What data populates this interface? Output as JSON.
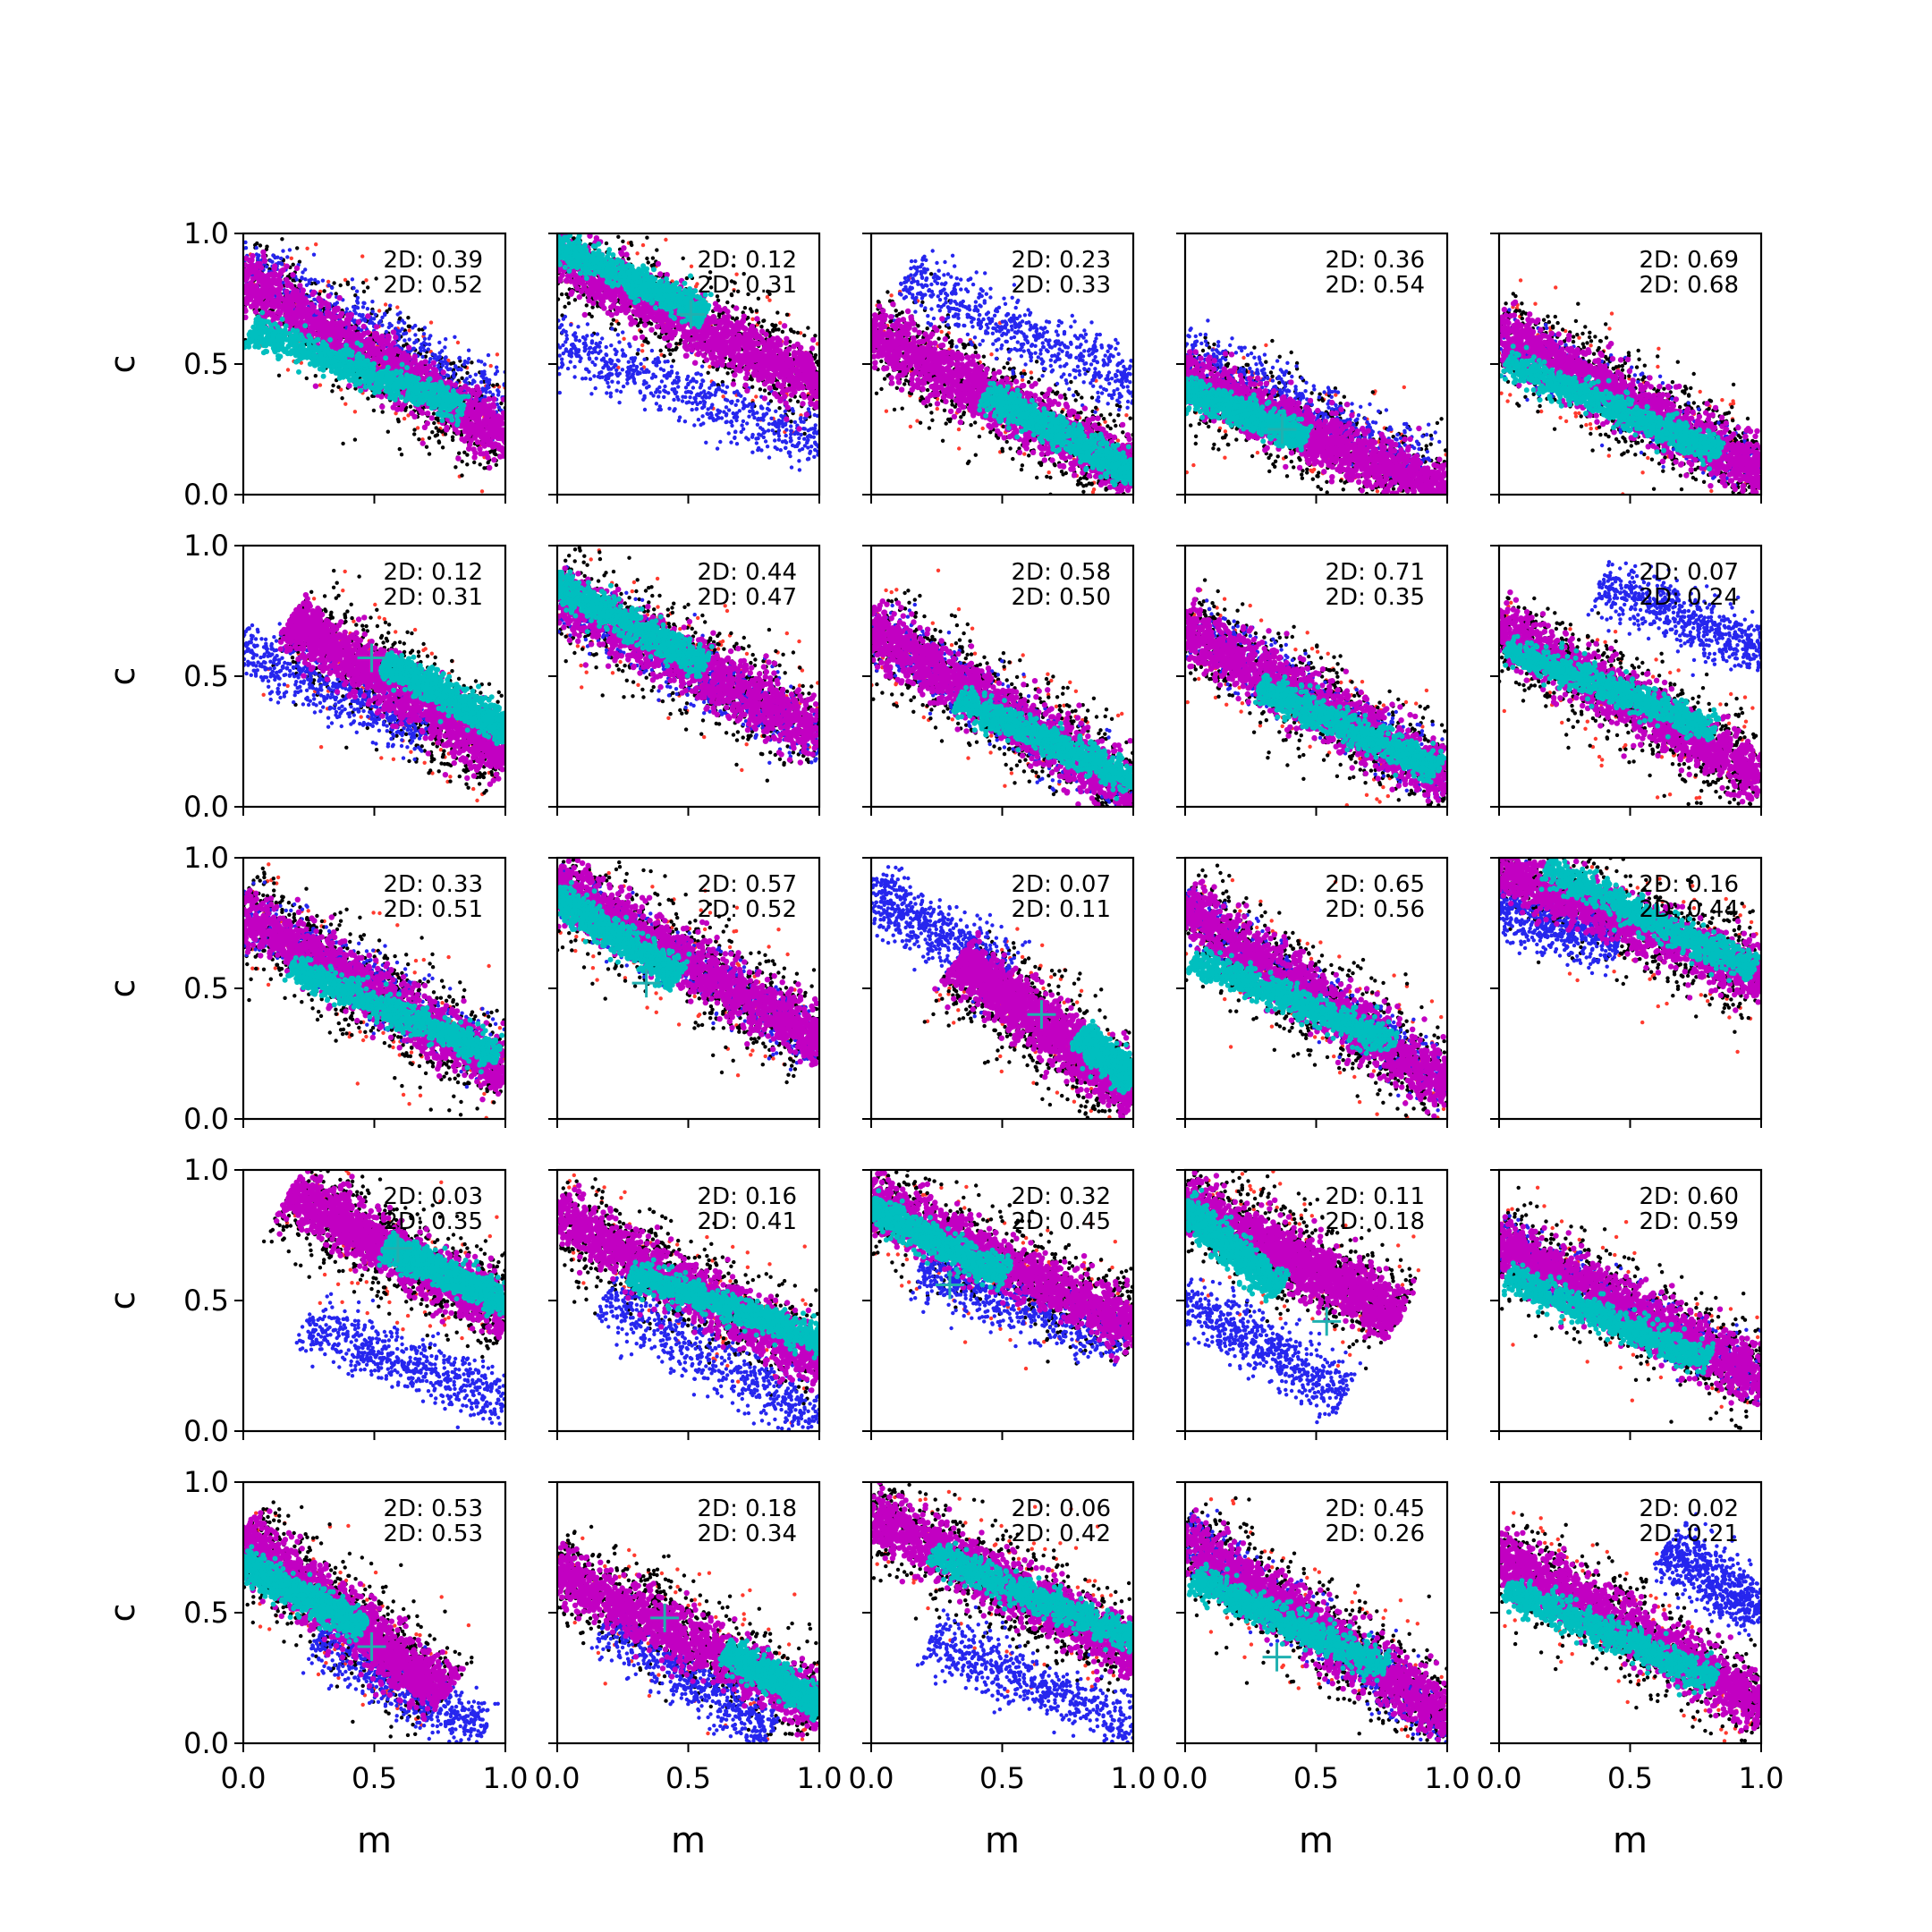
{
  "chart_data": {
    "type": "scatter",
    "grid_rows": 5,
    "grid_cols": 5,
    "xlabel": "m",
    "ylabel": "c",
    "xlim": [
      0,
      1
    ],
    "ylim": [
      0,
      1
    ],
    "xticks": [
      "0.0",
      "0.5",
      "1.0"
    ],
    "yticks": [
      "0.0",
      "0.5",
      "1.0"
    ],
    "grid": false,
    "colors": {
      "red": "#ff3b2f",
      "black": "#000000",
      "blue": "#2626ee",
      "magenta": "#c200c2",
      "cyan": "#00bfbf",
      "cross": "#20b0b0",
      "text": "#000000"
    },
    "panels": [
      {
        "label1": "2D: 0.39",
        "label2": "2D: 0.52",
        "blue": [
          0.0,
          0.88,
          1.0,
          0.35
        ],
        "pink": [
          0.0,
          0.82,
          1.0,
          0.22
        ],
        "cyan": [
          0.05,
          0.62,
          0.82,
          0.34
        ],
        "cross": null
      },
      {
        "label1": "2D: 0.12",
        "label2": "2D: 0.31",
        "blue": [
          0.0,
          0.58,
          1.0,
          0.2
        ],
        "pink": [
          0.0,
          0.92,
          1.0,
          0.42
        ],
        "cyan": [
          0.0,
          0.95,
          0.55,
          0.7
        ],
        "cross": [
          0.51,
          0.69
        ]
      },
      {
        "label1": "2D: 0.23",
        "label2": "2D: 0.33",
        "blue": [
          0.15,
          0.82,
          1.0,
          0.42
        ],
        "pink": [
          0.0,
          0.62,
          1.0,
          0.08
        ],
        "cyan": [
          0.45,
          0.38,
          1.0,
          0.08
        ],
        "cross": null
      },
      {
        "label1": "2D: 0.36",
        "label2": "2D: 0.54",
        "blue": [
          0.0,
          0.55,
          0.9,
          0.12
        ],
        "pink": [
          0.0,
          0.45,
          1.0,
          0.0
        ],
        "cyan": [
          0.0,
          0.4,
          0.45,
          0.22
        ],
        "cross": [
          0.37,
          0.25
        ]
      },
      {
        "label1": "2D: 0.69",
        "label2": "2D: 0.68",
        "blue": [
          0.0,
          0.6,
          1.0,
          0.1
        ],
        "pink": [
          0.0,
          0.62,
          1.0,
          0.08
        ],
        "cyan": [
          0.05,
          0.5,
          0.82,
          0.17
        ],
        "cross": null
      },
      {
        "label1": "2D: 0.12",
        "label2": "2D: 0.31",
        "blue": [
          0.0,
          0.6,
          0.7,
          0.3
        ],
        "pink": [
          0.2,
          0.7,
          1.0,
          0.2
        ],
        "cyan": [
          0.55,
          0.55,
          1.0,
          0.3
        ],
        "cross": [
          0.49,
          0.57
        ]
      },
      {
        "label1": "2D: 0.44",
        "label2": "2D: 0.47",
        "blue": [
          0.0,
          0.8,
          1.0,
          0.25
        ],
        "pink": [
          0.0,
          0.82,
          1.0,
          0.28
        ],
        "cyan": [
          0.0,
          0.85,
          0.55,
          0.55
        ],
        "cross": null
      },
      {
        "label1": "2D: 0.58",
        "label2": "2D: 0.50",
        "blue": [
          0.0,
          0.68,
          1.0,
          0.05
        ],
        "pink": [
          0.0,
          0.68,
          1.0,
          0.05
        ],
        "cyan": [
          0.35,
          0.4,
          1.0,
          0.1
        ],
        "cross": null
      },
      {
        "label1": "2D: 0.71",
        "label2": "2D: 0.35",
        "blue": [
          0.0,
          0.7,
          1.0,
          0.1
        ],
        "pink": [
          0.0,
          0.68,
          1.0,
          0.1
        ],
        "cyan": [
          0.3,
          0.45,
          0.95,
          0.15
        ],
        "cross": null
      },
      {
        "label1": "2D: 0.07",
        "label2": "2D: 0.24",
        "blue": [
          0.4,
          0.85,
          1.0,
          0.6
        ],
        "pink": [
          0.0,
          0.68,
          1.0,
          0.12
        ],
        "cyan": [
          0.05,
          0.6,
          0.8,
          0.3
        ],
        "cross": null
      },
      {
        "label1": "2D: 0.33",
        "label2": "2D: 0.51",
        "blue": [
          0.0,
          0.8,
          1.0,
          0.2
        ],
        "pink": [
          0.0,
          0.78,
          1.0,
          0.18
        ],
        "cyan": [
          0.2,
          0.57,
          0.95,
          0.25
        ],
        "cross": null
      },
      {
        "label1": "2D: 0.57",
        "label2": "2D: 0.52",
        "blue": [
          0.0,
          0.88,
          1.0,
          0.3
        ],
        "pink": [
          0.0,
          0.9,
          1.0,
          0.3
        ],
        "cyan": [
          0.0,
          0.85,
          0.45,
          0.55
        ],
        "cross": [
          0.34,
          0.52
        ]
      },
      {
        "label1": "2D: 0.07",
        "label2": "2D: 0.11",
        "blue": [
          0.0,
          0.88,
          0.5,
          0.55
        ],
        "pink": [
          0.35,
          0.6,
          1.0,
          0.1
        ],
        "cyan": [
          0.8,
          0.32,
          1.0,
          0.15
        ],
        "cross": [
          0.65,
          0.4
        ]
      },
      {
        "label1": "2D: 0.65",
        "label2": "2D: 0.56",
        "blue": [
          0.0,
          0.8,
          1.0,
          0.15
        ],
        "pink": [
          0.0,
          0.8,
          1.0,
          0.12
        ],
        "cyan": [
          0.05,
          0.6,
          0.78,
          0.3
        ],
        "cross": null
      },
      {
        "label1": "2D: 0.16",
        "label2": "2D: 0.44",
        "blue": [
          0.0,
          0.82,
          0.45,
          0.68
        ],
        "pink": [
          0.0,
          0.95,
          1.0,
          0.55
        ],
        "cyan": [
          0.2,
          0.95,
          0.95,
          0.58
        ],
        "cross": null
      },
      {
        "label1": "2D: 0.03",
        "label2": "2D: 0.35",
        "blue": [
          0.25,
          0.4,
          1.0,
          0.12
        ],
        "pink": [
          0.2,
          0.9,
          1.0,
          0.45
        ],
        "cyan": [
          0.55,
          0.7,
          1.0,
          0.5
        ],
        "cross": [
          0.59,
          0.7
        ]
      },
      {
        "label1": "2D: 0.16",
        "label2": "2D: 0.41",
        "blue": [
          0.2,
          0.5,
          1.0,
          0.05
        ],
        "pink": [
          0.0,
          0.82,
          1.0,
          0.28
        ],
        "cyan": [
          0.3,
          0.6,
          1.0,
          0.35
        ],
        "cross": null
      },
      {
        "label1": "2D: 0.32",
        "label2": "2D: 0.45",
        "blue": [
          0.2,
          0.6,
          0.95,
          0.35
        ],
        "pink": [
          0.0,
          0.88,
          1.0,
          0.4
        ],
        "cyan": [
          0.0,
          0.85,
          0.5,
          0.6
        ],
        "cross": [
          0.3,
          0.56
        ]
      },
      {
        "label1": "2D: 0.11",
        "label2": "2D: 0.18",
        "blue": [
          0.0,
          0.5,
          0.6,
          0.15
        ],
        "pink": [
          0.0,
          0.88,
          0.8,
          0.45
        ],
        "cyan": [
          0.0,
          0.85,
          0.35,
          0.55
        ],
        "cross": [
          0.54,
          0.42
        ]
      },
      {
        "label1": "2D: 0.60",
        "label2": "2D: 0.59",
        "blue": [
          0.0,
          0.72,
          1.0,
          0.2
        ],
        "pink": [
          0.0,
          0.72,
          1.0,
          0.2
        ],
        "cyan": [
          0.05,
          0.58,
          0.78,
          0.28
        ],
        "cross": null
      },
      {
        "label1": "2D: 0.53",
        "label2": "2D: 0.53",
        "blue": [
          0.3,
          0.4,
          0.9,
          0.05
        ],
        "pink": [
          0.0,
          0.78,
          0.75,
          0.2
        ],
        "cyan": [
          0.0,
          0.68,
          0.45,
          0.45
        ],
        "cross": [
          0.49,
          0.37
        ]
      },
      {
        "label1": "2D: 0.18",
        "label2": "2D: 0.34",
        "blue": [
          0.2,
          0.45,
          0.8,
          0.05
        ],
        "pink": [
          0.0,
          0.65,
          1.0,
          0.15
        ],
        "cyan": [
          0.65,
          0.35,
          1.0,
          0.15
        ],
        "cross": [
          0.41,
          0.48
        ]
      },
      {
        "label1": "2D: 0.06",
        "label2": "2D: 0.42",
        "blue": [
          0.25,
          0.4,
          1.0,
          0.05
        ],
        "pink": [
          0.0,
          0.88,
          1.0,
          0.35
        ],
        "cyan": [
          0.25,
          0.72,
          1.0,
          0.4
        ],
        "cross": null
      },
      {
        "label1": "2D: 0.45",
        "label2": "2D: 0.26",
        "blue": [
          0.0,
          0.8,
          1.0,
          0.05
        ],
        "pink": [
          0.0,
          0.78,
          1.0,
          0.1
        ],
        "cyan": [
          0.05,
          0.62,
          0.75,
          0.3
        ],
        "cross": [
          0.35,
          0.33
        ]
      },
      {
        "label1": "2D: 0.02",
        "label2": "2D: 0.21",
        "blue": [
          0.65,
          0.75,
          1.0,
          0.5
        ],
        "pink": [
          0.0,
          0.72,
          1.0,
          0.15
        ],
        "cyan": [
          0.05,
          0.58,
          0.8,
          0.25
        ],
        "cross": null
      }
    ]
  }
}
